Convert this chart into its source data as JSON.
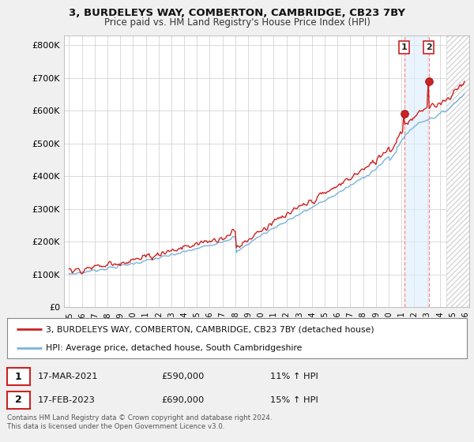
{
  "title": "3, BURDELEYS WAY, COMBERTON, CAMBRIDGE, CB23 7BY",
  "subtitle": "Price paid vs. HM Land Registry's House Price Index (HPI)",
  "ylabel_ticks": [
    "£0",
    "£100K",
    "£200K",
    "£300K",
    "£400K",
    "£500K",
    "£600K",
    "£700K",
    "£800K"
  ],
  "ytick_values": [
    0,
    100000,
    200000,
    300000,
    400000,
    500000,
    600000,
    700000,
    800000
  ],
  "ylim": [
    0,
    830000
  ],
  "xlim_start": 1994.6,
  "xlim_end": 2026.3,
  "sale1_x": 2021.21,
  "sale1_y": 590000,
  "sale2_x": 2023.12,
  "sale2_y": 690000,
  "legend_line1": "3, BURDELEYS WAY, COMBERTON, CAMBRIDGE, CB23 7BY (detached house)",
  "legend_line2": "HPI: Average price, detached house, South Cambridgeshire",
  "table_row1": [
    "1",
    "17-MAR-2021",
    "£590,000",
    "11% ↑ HPI"
  ],
  "table_row2": [
    "2",
    "17-FEB-2023",
    "£690,000",
    "15% ↑ HPI"
  ],
  "footer": "Contains HM Land Registry data © Crown copyright and database right 2024.\nThis data is licensed under the Open Government Licence v3.0.",
  "hpi_color": "#7ab4d8",
  "price_color": "#cc2222",
  "bg_color": "#f0f0f0",
  "plot_bg_color": "#ffffff",
  "grid_color": "#cccccc",
  "hatch_start": 2024.5,
  "shade_color": "#ddeeff"
}
